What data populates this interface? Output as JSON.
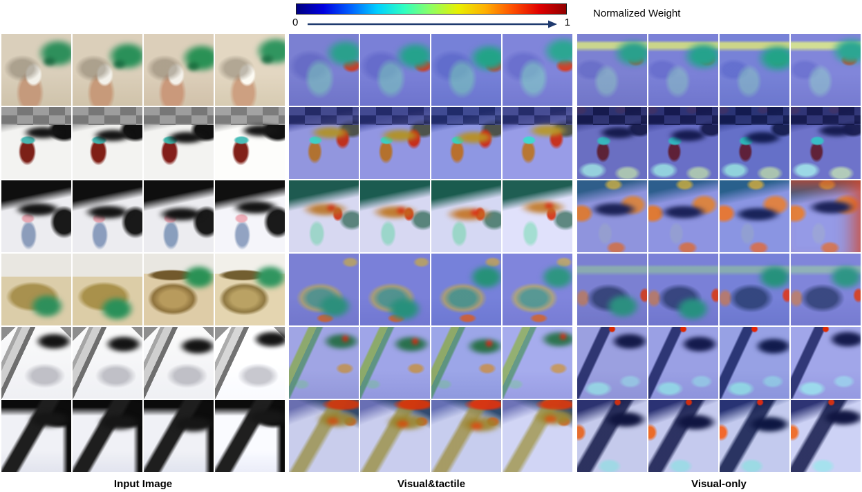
{
  "colorbar": {
    "title": "Normalized Weight",
    "min_label": "0",
    "max_label": "1",
    "arrow_color": "#1f3a6e",
    "colors": [
      "#00007f",
      "#0000e0",
      "#0060ff",
      "#00d0ff",
      "#30ffc0",
      "#90ff60",
      "#e8f000",
      "#ffb000",
      "#ff5000",
      "#e00000",
      "#900000"
    ]
  },
  "columns": [
    {
      "id": "input",
      "label": "Input Image"
    },
    {
      "id": "visual-tactile",
      "label": "Visual&tactile"
    },
    {
      "id": "visual-only",
      "label": "Visual-only"
    }
  ],
  "frames_per_sequence": 4,
  "rows": [
    {
      "id": "cup-grasp",
      "description": "Green-gloved hand grasping a white cup held by a bare hand on a beige desk"
    },
    {
      "id": "sim-bottle-grasp",
      "description": "Simulated black robot gripper grasping a dark red bottle with a teal cap on a white table"
    },
    {
      "id": "robot-cylinder-grasp",
      "description": "Real robot hand grasping a blue cylinder with a pink cap against a black background"
    },
    {
      "id": "box-lid-open",
      "description": "Green-gloved hand opening the lid of a cardboard box on a wooden desk"
    },
    {
      "id": "sim-rail-slide",
      "description": "Simulated black robot hand sliding along a gray rail on a white table"
    },
    {
      "id": "robot-rail-slide",
      "description": "Real robot hand sliding along a dark rail on a white table against a black background"
    }
  ]
}
